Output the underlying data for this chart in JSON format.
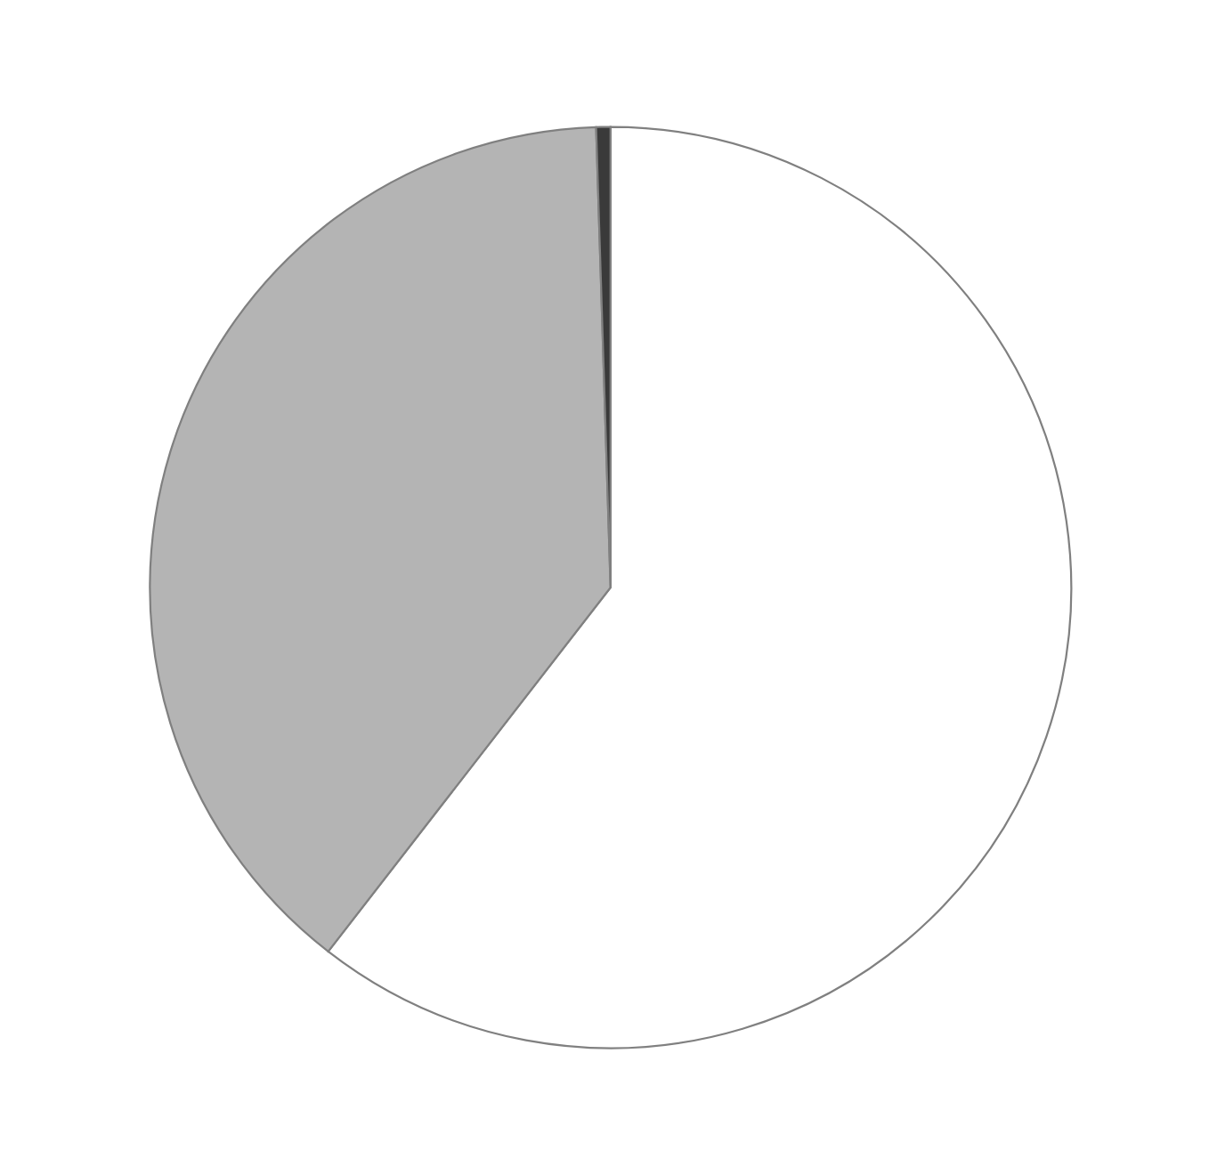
{
  "chart_data": {
    "type": "pie",
    "categories": [
      null,
      null,
      null
    ],
    "values": [
      60.5,
      39,
      0.5
    ],
    "colors": [
      "#ffffff",
      "#b4b4b4",
      "#3a3a3a"
    ]
  }
}
